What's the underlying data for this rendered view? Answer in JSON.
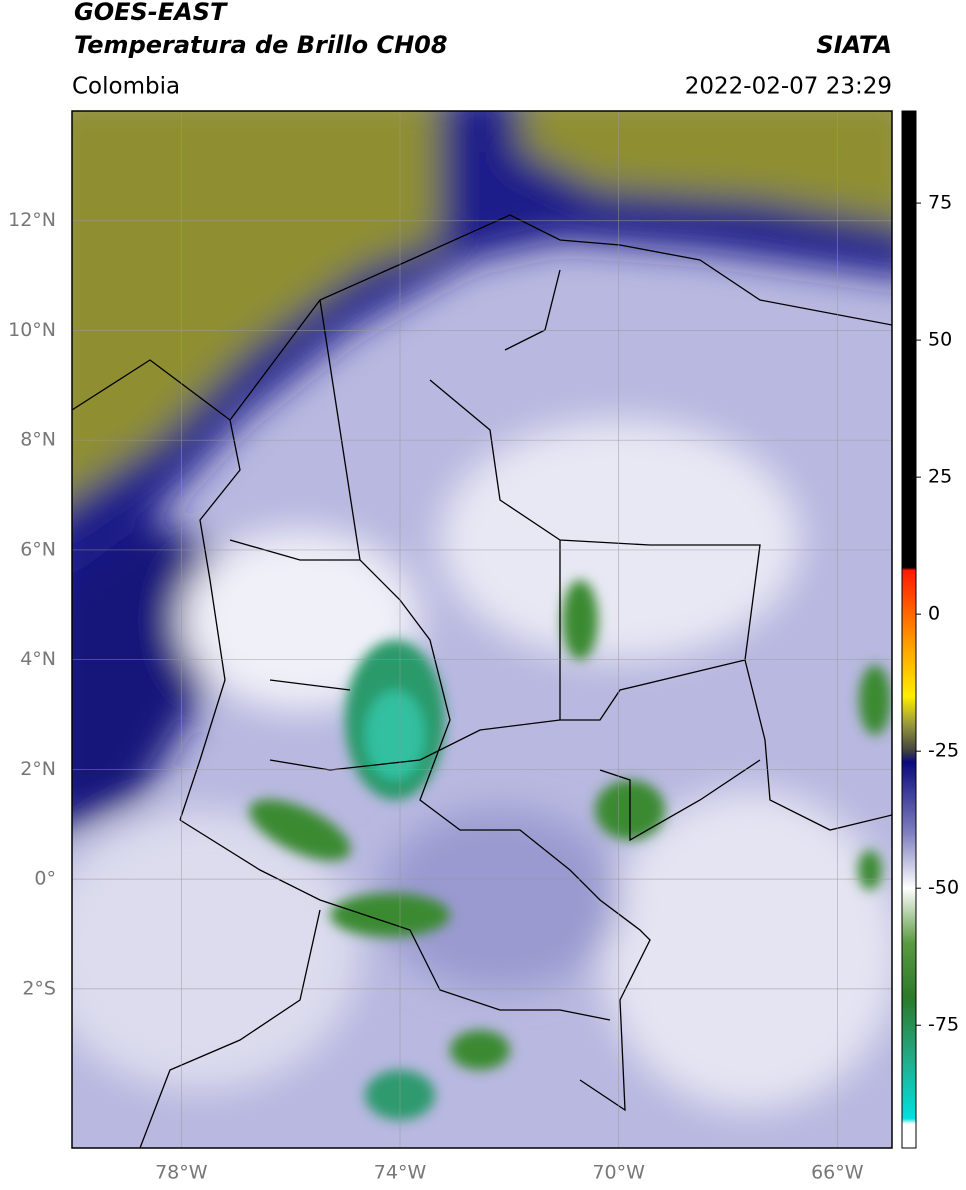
{
  "header": {
    "satellite": "GOES-EAST",
    "product": "Temperatura de Brillo CH08",
    "region": "Colombia",
    "source": "SIATA",
    "datetime": "2022-02-07 23:29"
  },
  "map": {
    "xlim": [
      -80,
      -65
    ],
    "ylim": [
      -4.9,
      14
    ],
    "yticks": [
      {
        "value": 12,
        "label": "12°N"
      },
      {
        "value": 10,
        "label": "10°N"
      },
      {
        "value": 8,
        "label": "8°N"
      },
      {
        "value": 6,
        "label": "6°N"
      },
      {
        "value": 4,
        "label": "4°N"
      },
      {
        "value": 2,
        "label": "2°N"
      },
      {
        "value": 0,
        "label": "0°"
      },
      {
        "value": -2,
        "label": "2°S"
      }
    ],
    "xticks": [
      {
        "value": -78,
        "label": "78°W"
      },
      {
        "value": -74,
        "label": "74°W"
      },
      {
        "value": -70,
        "label": "70°W"
      },
      {
        "value": -66,
        "label": "66°W"
      }
    ],
    "grid": true
  },
  "colorbar": {
    "lim": [
      -97.4,
      91.8
    ],
    "ticks": [
      75,
      50,
      25,
      0,
      -25,
      -50,
      -75
    ],
    "stops": [
      [
        91.8,
        "#000000"
      ],
      [
        8.5,
        "#000000"
      ],
      [
        8,
        "#ff1a00"
      ],
      [
        -5,
        "#ff9900"
      ],
      [
        -15,
        "#ffee00"
      ],
      [
        -20,
        "#9a9a3a"
      ],
      [
        -25,
        "#404040"
      ],
      [
        -27,
        "#0a0a80"
      ],
      [
        -40,
        "#8080c0"
      ],
      [
        -50,
        "#ffffff"
      ],
      [
        -60,
        "#5a9a40"
      ],
      [
        -70,
        "#2a7a2a"
      ],
      [
        -82,
        "#20b090"
      ],
      [
        -92,
        "#00e0e0"
      ],
      [
        -93,
        "#ffffff"
      ],
      [
        -97.4,
        "#ffffff"
      ]
    ]
  }
}
